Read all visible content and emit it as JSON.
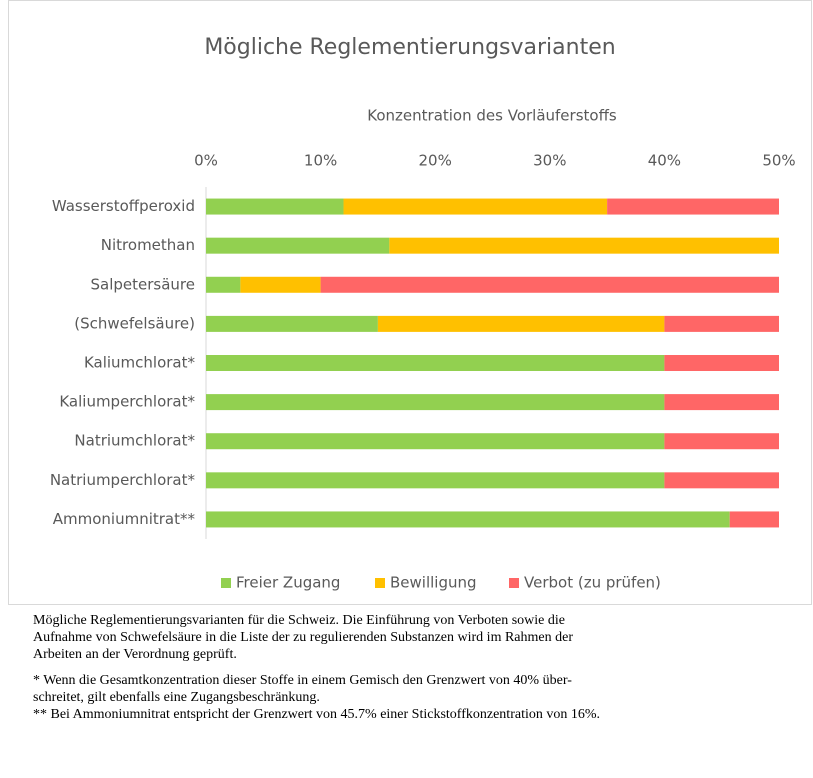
{
  "chart_data": {
    "type": "stacked_bar_horizontal",
    "title": "Mögliche Reglementierungsvarianten",
    "x_axis_title": "Konzentration des Vorläuferstoffs",
    "categories": [
      "Wasserstoffperoxid",
      "Nitromethan",
      "Salpetersäure",
      "(Schwefelsäure)",
      "Kaliumchlorat*",
      "Kaliumperchlorat*",
      "Natriumchlorat*",
      "Natriumperchlorat*",
      "Ammoniumnitrat**"
    ],
    "series": [
      {
        "name": "Freier Zugang",
        "color": "#92d050",
        "values": [
          12,
          16,
          3,
          15,
          40,
          40,
          40,
          40,
          45.7
        ]
      },
      {
        "name": "Bewilligung",
        "color": "#ffc000",
        "values": [
          23,
          34,
          7,
          25,
          0,
          0,
          0,
          0,
          0
        ]
      },
      {
        "name": "Verbot (zu prüfen)",
        "color": "#ff6666",
        "values": [
          15,
          0,
          40,
          10,
          10,
          10,
          10,
          10,
          4.3
        ]
      }
    ],
    "xlim": [
      0,
      50
    ],
    "xticks": [
      {
        "value": 0,
        "label": "0%"
      },
      {
        "value": 10,
        "label": "10%"
      },
      {
        "value": 20,
        "label": "20%"
      },
      {
        "value": 30,
        "label": "30%"
      },
      {
        "value": 40,
        "label": "40%"
      },
      {
        "value": 50,
        "label": "50%"
      }
    ],
    "legend": "bottom"
  },
  "caption": [
    "Mögliche Reglementierungsvarianten für die Schweiz. Die Einführung von Verboten sowie die",
    "Aufnahme von Schwefelsäure in die Liste der zu regulierenden Substanzen wird im Rahmen der",
    "Arbeiten an der Verordnung geprüft."
  ],
  "notes": [
    "*  Wenn die Gesamtkonzentration dieser Stoffe in einem Gemisch den Grenzwert von 40% über-",
    "schreitet, gilt ebenfalls eine Zugangsbeschränkung.",
    "** Bei Ammoniumnitrat entspricht der Grenzwert von 45.7% einer Stickstoffkonzentration von 16%."
  ]
}
